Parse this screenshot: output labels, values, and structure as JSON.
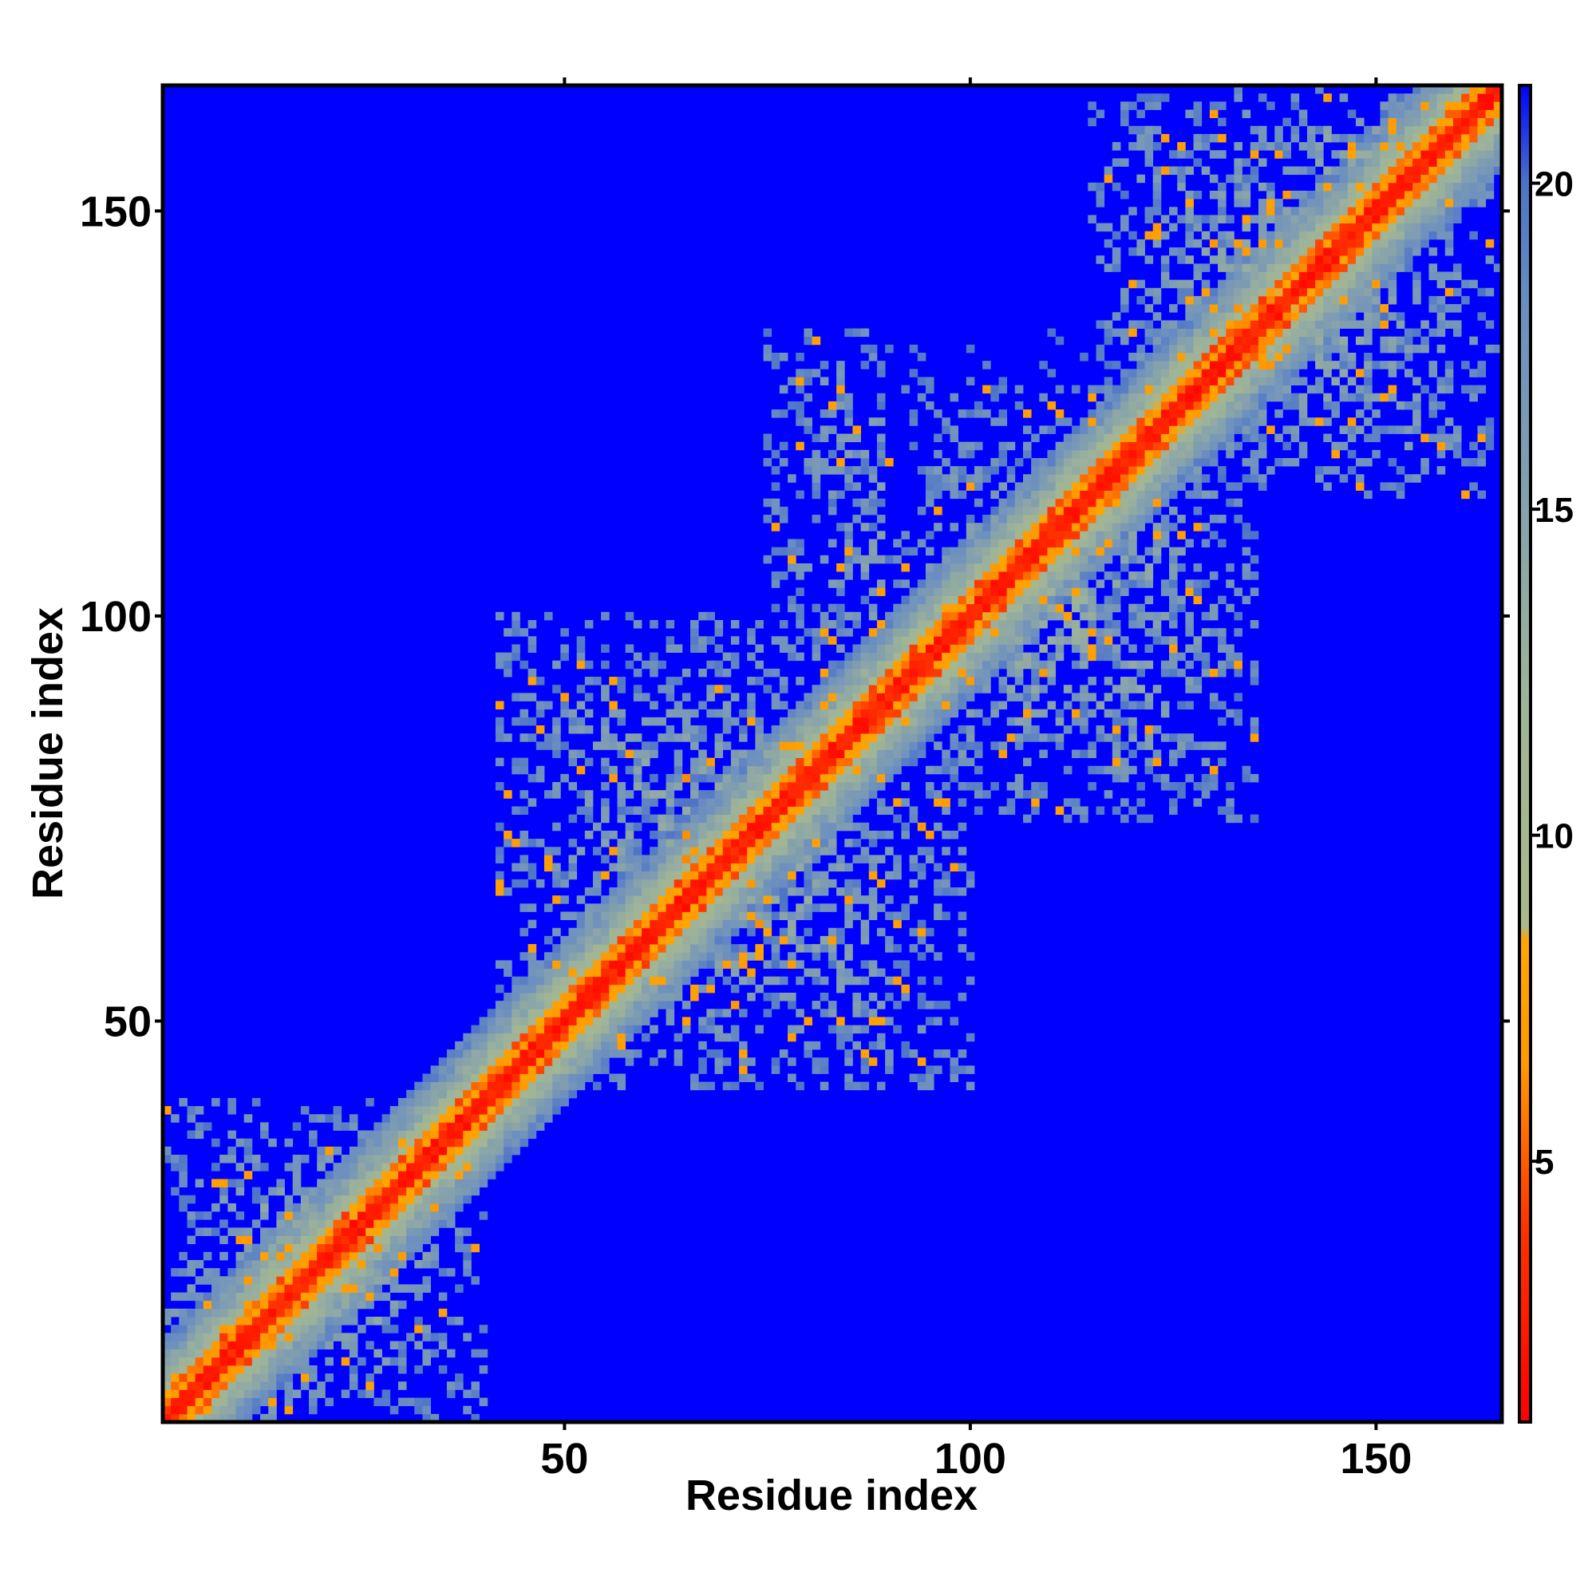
{
  "chart_data": {
    "type": "heatmap",
    "title": "",
    "xlabel": "Residue index",
    "ylabel": "Residue index",
    "xlim": [
      1,
      165
    ],
    "ylim": [
      1,
      165
    ],
    "x_ticks": [
      {
        "value": 50,
        "label": "50"
      },
      {
        "value": 100,
        "label": "100"
      },
      {
        "value": 150,
        "label": "150"
      }
    ],
    "y_ticks": [
      {
        "value": 50,
        "label": "50"
      },
      {
        "value": 100,
        "label": "100"
      },
      {
        "value": 150,
        "label": "150"
      }
    ],
    "colorbar": {
      "range": [
        1,
        21.5
      ],
      "ticks": [
        {
          "value": 5,
          "label": "5"
        },
        {
          "value": 10,
          "label": "10"
        },
        {
          "value": 15,
          "label": "15"
        },
        {
          "value": 20,
          "label": "20"
        }
      ],
      "stops": [
        {
          "value": 1,
          "color": "#ff0000"
        },
        {
          "value": 4,
          "color": "#ff3300"
        },
        {
          "value": 6.5,
          "color": "#ff9900"
        },
        {
          "value": 8.4,
          "color": "#ffa500"
        },
        {
          "value": 8.6,
          "color": "#a9b98a"
        },
        {
          "value": 12,
          "color": "#9fb498"
        },
        {
          "value": 18,
          "color": "#6c8fc0"
        },
        {
          "value": 20,
          "color": "#4d73c8"
        },
        {
          "value": 21.5,
          "color": "#0000ff"
        }
      ]
    },
    "background_color": "#0000ff",
    "diagonal": "symmetric contact map",
    "regions": [
      {
        "residues_i": [
          1,
          40
        ],
        "residues_j": [
          1,
          40
        ],
        "pattern": "narrow band along diagonal"
      },
      {
        "residues_i": [
          42,
          100
        ],
        "residues_j": [
          42,
          100
        ],
        "pattern": "dense contact domain"
      },
      {
        "residues_i": [
          90,
          135
        ],
        "residues_j": [
          75,
          125
        ],
        "pattern": "off-diagonal contact patch"
      },
      {
        "residues_i": [
          115,
          165
        ],
        "residues_j": [
          115,
          165
        ],
        "pattern": "dense contact domain"
      },
      {
        "residues_i": [
          136,
          162
        ],
        "residues_j": [
          148,
          165
        ],
        "pattern": "off-diagonal contact patch"
      }
    ]
  }
}
